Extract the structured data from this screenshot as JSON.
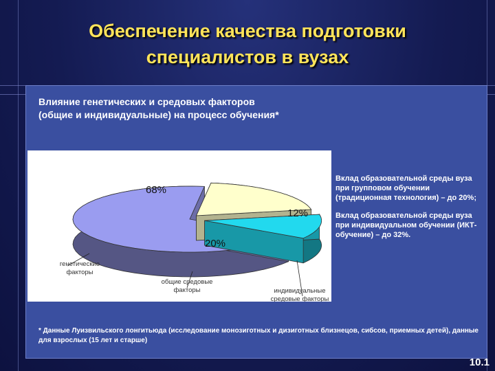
{
  "slide": {
    "title_line1": "Обеспечение качества подготовки",
    "title_line2": "специалистов в вузах",
    "subtitle_line1": "Влияние генетических и средовых факторов",
    "subtitle_line2": "(общие и индивидуальные) на процесс обучения*",
    "legend_para1": "Вклад образовательной среды вуза при групповом обучении (традиционная технология) – до 20%;",
    "legend_para2": "Вклад образовательной среды вуза при индивидуальном обучении (ИКТ-обучение) – до 32%.",
    "footnote": "* Данные Луизвильского лонгитьюда (исследование монозиготных и дизиготных близнецов, сибсов, приемных детей), данные для взрослых (15 лет и старше)",
    "slide_number": "10.1",
    "colors": {
      "title": "#ffe45a",
      "panel": "#3a4fa0"
    }
  },
  "chart_data": {
    "type": "pie",
    "style": "3d-exploded",
    "slices": [
      {
        "label": "генетические факторы",
        "value": 68,
        "value_label": "68%",
        "color": "#9a9cf0"
      },
      {
        "label": "общие средовые факторы",
        "value": 20,
        "value_label": "20%",
        "color": "#ffffcc"
      },
      {
        "label": "индивидуальные средовые факторы",
        "value": 12,
        "value_label": "12%",
        "color": "#22d9ee"
      }
    ],
    "slice_label_lines": [
      [
        "генетические",
        "факторы"
      ],
      [
        "общие средовые",
        "факторы"
      ],
      [
        "индивидуальные",
        "средовые факторы"
      ]
    ]
  }
}
